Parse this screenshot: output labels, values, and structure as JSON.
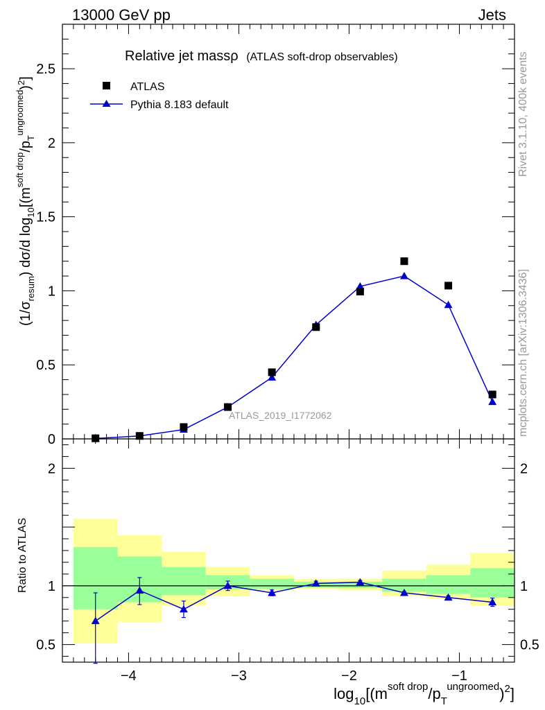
{
  "header": {
    "left": "13000 GeV pp",
    "right": "Jets"
  },
  "side_text": {
    "rivet": "Rivet 3.1.10,  400k events",
    "mcplots": "mcplots.cern.ch [arXiv:1306.3436]"
  },
  "chart_data": [
    {
      "type": "scatter",
      "panel": "main",
      "title": "Relative jet massρ",
      "subtitle": "(ATLAS soft-drop observables)",
      "analysis_label": "ATLAS_2019_I1772062",
      "ylabel": "(1/σresum) dσ/d log10[(m soft drop / pT ungroomed)2]",
      "ylabel_parts": {
        "a": "(1/σ",
        "a_sub": "resum",
        "b": ") dσ/d log",
        "b_sub": "10",
        "c": "[(m",
        "c_sup": "soft drop",
        "d": "/p",
        "d_sub": "T",
        "d_sup": "ungroomed",
        "e": ")",
        "e_sup": "2",
        "f": "]"
      },
      "xlim": [
        -4.6,
        -0.5
      ],
      "ylim": [
        0,
        2.8
      ],
      "yticks": [
        {
          "v": 0,
          "label": "0"
        },
        {
          "v": 0.5,
          "label": "0.5"
        },
        {
          "v": 1,
          "label": "1"
        },
        {
          "v": 1.5,
          "label": "1.5"
        },
        {
          "v": 2,
          "label": "2"
        },
        {
          "v": 2.5,
          "label": "2.5"
        }
      ],
      "legend": {
        "position": "top-left",
        "entries": [
          {
            "label": "ATLAS",
            "marker": "square",
            "color": "#000000"
          },
          {
            "label": "Pythia 8.183 default",
            "marker": "triangle",
            "color": "#0000cc"
          }
        ]
      },
      "series": [
        {
          "name": "ATLAS",
          "color": "#000000",
          "marker": "square",
          "x": [
            -4.3,
            -3.9,
            -3.5,
            -3.1,
            -2.7,
            -2.3,
            -1.9,
            -1.5,
            -1.1,
            -0.7
          ],
          "values": [
            0.004,
            0.02,
            0.08,
            0.215,
            0.45,
            0.755,
            0.995,
            1.2,
            1.035,
            0.3
          ]
        },
        {
          "name": "Pythia 8.183 default",
          "color": "#0000cc",
          "marker": "triangle",
          "line": true,
          "x": [
            -4.3,
            -3.9,
            -3.5,
            -3.1,
            -2.7,
            -2.3,
            -1.9,
            -1.5,
            -1.1,
            -0.7
          ],
          "values": [
            0.003,
            0.02,
            0.063,
            0.215,
            0.415,
            0.77,
            1.03,
            1.1,
            0.905,
            0.25
          ],
          "errors": [
            0.001,
            0.003,
            0.006,
            0.01,
            0.012,
            0.02,
            0.022,
            0.02,
            0.018,
            0.012
          ]
        }
      ]
    },
    {
      "type": "scatter",
      "panel": "ratio",
      "ylabel": "Ratio to ATLAS",
      "xlabel": "log10[(m soft drop / pT ungroomed)2]",
      "xlabel_parts": {
        "a": "log",
        "a_sub": "10",
        "b": "[(m",
        "b_sup": "soft drop",
        "c": "/p",
        "c_sub": "T",
        "c_sup": "ungroomed",
        "d": ")",
        "d_sup": "2",
        "e": "]"
      },
      "xlim": [
        -4.6,
        -0.5
      ],
      "ylim": [
        0.35,
        2.25
      ],
      "xticks": [
        {
          "v": -4,
          "label": "−4"
        },
        {
          "v": -3,
          "label": "−3"
        },
        {
          "v": -2,
          "label": "−2"
        },
        {
          "v": -1,
          "label": "−1"
        }
      ],
      "yticks": [
        {
          "v": 0.5,
          "label": "0.5"
        },
        {
          "v": 1,
          "label": "1"
        },
        {
          "v": 2,
          "label": "2"
        }
      ],
      "reference_line": 1,
      "bands": {
        "bin_edges": [
          -4.5,
          -4.1,
          -3.7,
          -3.3,
          -2.9,
          -2.5,
          -2.1,
          -1.7,
          -1.3,
          -0.9,
          -0.5
        ],
        "yellow_color": "#ffff99",
        "green_color": "#99ff99",
        "yellow_low": [
          0.51,
          0.69,
          0.83,
          0.91,
          0.96,
          0.975,
          0.96,
          0.91,
          0.89,
          0.83
        ],
        "yellow_high": [
          1.57,
          1.43,
          1.29,
          1.16,
          1.09,
          1.06,
          1.06,
          1.13,
          1.18,
          1.28
        ],
        "green_low": [
          0.8,
          0.86,
          0.92,
          0.97,
          0.975,
          0.985,
          0.98,
          0.95,
          0.93,
          0.9
        ],
        "green_high": [
          1.33,
          1.25,
          1.16,
          1.09,
          1.06,
          1.035,
          1.035,
          1.06,
          1.09,
          1.15
        ]
      },
      "series": [
        {
          "name": "Pythia 8.183 default / ATLAS",
          "color": "#0000cc",
          "marker": "triangle",
          "x": [
            -4.3,
            -3.9,
            -3.5,
            -3.1,
            -2.7,
            -2.3,
            -1.9,
            -1.5,
            -1.1,
            -0.7
          ],
          "values": [
            0.7,
            0.96,
            0.8,
            1.0,
            0.94,
            1.02,
            1.03,
            0.94,
            0.9,
            0.86
          ],
          "err_low": [
            0.36,
            0.12,
            0.07,
            0.04,
            0.025,
            0.02,
            0.015,
            0.01,
            0.015,
            0.035
          ],
          "err_high": [
            0.24,
            0.11,
            0.07,
            0.04,
            0.025,
            0.02,
            0.015,
            0.01,
            0.015,
            0.035
          ]
        }
      ]
    }
  ]
}
